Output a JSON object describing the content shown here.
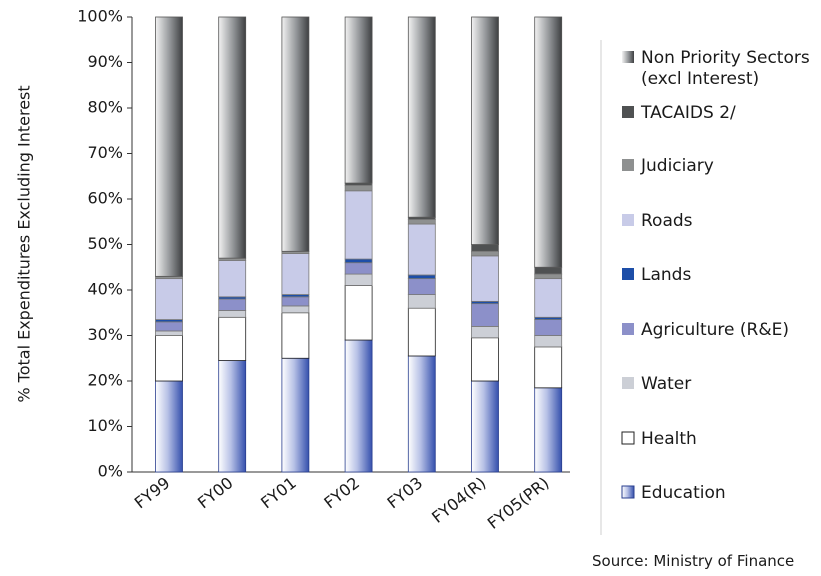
{
  "chart_data": {
    "type": "bar",
    "stacked": true,
    "percent_stacked": true,
    "ylabel": "% Total Expenditures Excluding Interest",
    "xlabel": "",
    "ylim": [
      0,
      100
    ],
    "yticks": [
      "0%",
      "10%",
      "20%",
      "30%",
      "40%",
      "50%",
      "60%",
      "70%",
      "80%",
      "90%",
      "100%"
    ],
    "categories": [
      "FY99",
      "FY00",
      "FY01",
      "FY02",
      "FY03",
      "FY04(R)",
      "FY05(PR)"
    ],
    "grid": false,
    "legend_position": "right",
    "series": [
      {
        "name": "Education",
        "color": "#3f57b0",
        "style": "gradient",
        "values": [
          20,
          24.5,
          25,
          29,
          25.5,
          20,
          18.5
        ]
      },
      {
        "name": "Health",
        "color": "#ffffff",
        "values": [
          10,
          9.5,
          10,
          12,
          10.5,
          9.5,
          9
        ]
      },
      {
        "name": "Water",
        "color": "#cccfd6",
        "values": [
          1,
          1.5,
          1.5,
          2.5,
          3,
          2.5,
          2.5
        ]
      },
      {
        "name": "Agriculture (R&E)",
        "color": "#8c90c9",
        "values": [
          2,
          2.5,
          2,
          2.5,
          3.5,
          5,
          3.5
        ]
      },
      {
        "name": "Lands",
        "color": "#1d4ea8",
        "values": [
          0.5,
          0.5,
          0.5,
          0.8,
          0.8,
          0.5,
          0.5
        ]
      },
      {
        "name": "Roads",
        "color": "#c8cbe8",
        "values": [
          9,
          8,
          9,
          15,
          11.2,
          10,
          8.5
        ]
      },
      {
        "name": "Judiciary",
        "color": "#8e9090",
        "values": [
          0.5,
          0.5,
          0.5,
          1.2,
          1,
          1,
          1
        ]
      },
      {
        "name": "TACAIDS 2/",
        "color": "#4f5152",
        "values": [
          0,
          0,
          0,
          0.5,
          0.5,
          1.5,
          1.5
        ]
      },
      {
        "name": "Non Priority Sectors\n(excl Interest)",
        "color": "#6a6d70",
        "style": "cylinder",
        "values": [
          57,
          53,
          51.5,
          36.5,
          44,
          50,
          55
        ]
      }
    ],
    "legend_order": [
      "Non Priority Sectors\n(excl Interest)",
      "TACAIDS 2/",
      "Judiciary",
      "Roads",
      "Lands",
      "Agriculture (R&E)",
      "Water",
      "Health",
      "Education"
    ]
  },
  "source_note": "Source: Ministry of Finance"
}
